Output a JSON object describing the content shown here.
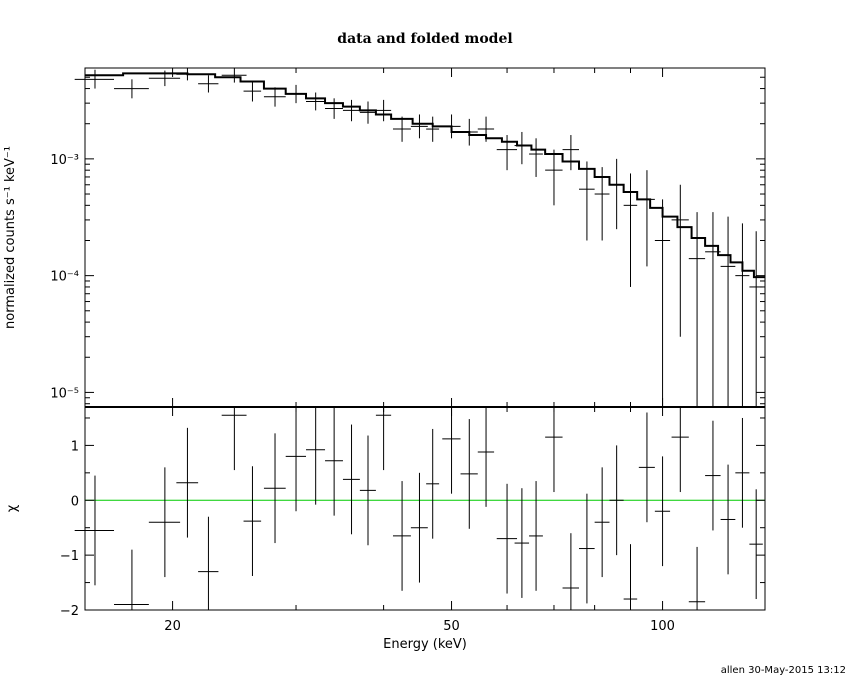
{
  "footer": "allen 30-May-2015 13:12",
  "chart_data": {
    "type": "scatter",
    "title": "data and folded model",
    "xlabel": "Energy (keV)",
    "xscale": "log",
    "xlim": [
      15,
      140
    ],
    "xticks": [
      20,
      50,
      100
    ],
    "xtick_labels": [
      "20",
      "50",
      "100"
    ],
    "top_panel": {
      "ylabel": "normalized counts s⁻¹ keV⁻¹",
      "yscale": "log",
      "ylim": [
        7.5e-06,
        0.006
      ],
      "yticks": [
        1e-05,
        0.0001,
        0.001
      ],
      "ytick_labels": [
        "10⁻⁵",
        "10⁻⁴",
        "10⁻³"
      ],
      "model_color": "#000000",
      "data": {
        "x": [
          15.5,
          17.5,
          19.5,
          21.0,
          22.5,
          24.5,
          26.0,
          28.0,
          30.0,
          32.0,
          34.0,
          36.0,
          38.0,
          40.0,
          42.5,
          45.0,
          47.0,
          50.0,
          53.0,
          56.0,
          60.0,
          63.0,
          66.0,
          70.0,
          74.0,
          78.0,
          82.0,
          86.0,
          90.0,
          95.0,
          100.0,
          106.0,
          112.0,
          118.0,
          124.0,
          130.0,
          136.0
        ],
        "y": [
          0.0048,
          0.004,
          0.0049,
          0.0053,
          0.0044,
          0.0052,
          0.0038,
          0.0034,
          0.0036,
          0.0031,
          0.0027,
          0.0026,
          0.0025,
          0.0026,
          0.0018,
          0.0019,
          0.0018,
          0.0019,
          0.0017,
          0.0018,
          0.0012,
          0.0013,
          0.0011,
          0.0008,
          0.0012,
          0.00055,
          0.0005,
          0.0006,
          0.0004,
          0.00045,
          0.0002,
          0.0003,
          0.00014,
          0.00016,
          0.00012,
          0.0001,
          8e-05
        ],
        "xerr": [
          1.0,
          1.0,
          1.0,
          0.75,
          0.75,
          1.0,
          0.75,
          1.0,
          1.0,
          1.0,
          1.0,
          1.0,
          1.0,
          1.0,
          1.25,
          1.25,
          1.0,
          1.5,
          1.5,
          1.5,
          2.0,
          1.5,
          1.5,
          2.0,
          2.0,
          2.0,
          2.0,
          2.0,
          2.0,
          2.5,
          2.5,
          3.0,
          3.0,
          3.0,
          3.0,
          3.0,
          3.0
        ],
        "ylo": [
          0.004,
          0.0033,
          0.0042,
          0.0047,
          0.0037,
          0.0045,
          0.0031,
          0.0028,
          0.003,
          0.0026,
          0.0022,
          0.0021,
          0.002,
          0.0021,
          0.0014,
          0.0015,
          0.0014,
          0.0015,
          0.0013,
          0.0014,
          0.0008,
          0.0009,
          0.0007,
          0.0004,
          0.0008,
          0.0002,
          0.0002,
          0.00025,
          8e-05,
          0.00012,
          7e-06,
          3e-05,
          7e-06,
          7e-06,
          7e-06,
          7e-06,
          7e-06
        ],
        "yhi": [
          0.0058,
          0.0048,
          0.0057,
          0.006,
          0.0052,
          0.006,
          0.0046,
          0.0041,
          0.0043,
          0.0037,
          0.0033,
          0.0032,
          0.0031,
          0.0032,
          0.0023,
          0.0024,
          0.0023,
          0.0024,
          0.0022,
          0.0023,
          0.0016,
          0.0017,
          0.0015,
          0.0012,
          0.0016,
          0.00095,
          0.00085,
          0.001,
          0.00075,
          0.0008,
          0.00045,
          0.0006,
          0.00035,
          0.00035,
          0.00032,
          0.00028,
          0.00024
        ]
      },
      "model": {
        "edges": [
          15,
          17,
          19,
          21,
          23,
          25,
          27,
          29,
          31,
          33,
          35,
          37,
          39,
          41,
          44,
          47,
          50,
          53,
          56,
          59,
          62,
          65,
          68,
          72,
          76,
          80,
          84,
          88,
          92,
          96,
          100,
          105,
          110,
          115,
          120,
          125,
          130,
          135,
          140
        ],
        "values": [
          0.0052,
          0.0054,
          0.0054,
          0.0053,
          0.005,
          0.0046,
          0.004,
          0.0036,
          0.0033,
          0.003,
          0.0028,
          0.0026,
          0.0024,
          0.0022,
          0.002,
          0.0019,
          0.0017,
          0.0016,
          0.0015,
          0.0014,
          0.0013,
          0.0012,
          0.0011,
          0.00095,
          0.00082,
          0.0007,
          0.0006,
          0.00052,
          0.00045,
          0.00038,
          0.00032,
          0.00026,
          0.00021,
          0.00018,
          0.00015,
          0.00013,
          0.00011,
          9.7e-05
        ]
      }
    },
    "bottom_panel": {
      "ylabel": "χ",
      "yscale": "linear",
      "ylim": [
        -2,
        1.7
      ],
      "yticks": [
        -2,
        -1,
        0,
        1
      ],
      "ytick_labels": [
        "−2",
        "−1",
        "0",
        "1"
      ],
      "zero_line_color": "#00cc00",
      "residuals": {
        "x": [
          15.5,
          17.5,
          19.5,
          21.0,
          22.5,
          24.5,
          26.0,
          28.0,
          30.0,
          32.0,
          34.0,
          36.0,
          38.0,
          40.0,
          42.5,
          45.0,
          47.0,
          50.0,
          53.0,
          56.0,
          60.0,
          63.0,
          66.0,
          70.0,
          74.0,
          78.0,
          82.0,
          86.0,
          90.0,
          95.0,
          100.0,
          106.0,
          112.0,
          118.0,
          124.0,
          130.0,
          136.0
        ],
        "y": [
          -0.55,
          -1.9,
          -0.4,
          0.32,
          -1.3,
          1.55,
          -0.38,
          0.22,
          0.8,
          0.92,
          0.72,
          0.38,
          0.18,
          1.55,
          -0.65,
          -0.5,
          0.3,
          1.12,
          0.48,
          0.88,
          -0.7,
          -0.78,
          -0.65,
          1.15,
          -1.6,
          -0.88,
          -0.4,
          0.0,
          -1.8,
          0.6,
          -0.2,
          1.15,
          -1.85,
          0.45,
          -0.35,
          0.5,
          -0.8
        ],
        "err": [
          1.0,
          1.0,
          1.0,
          1.0,
          1.0,
          1.0,
          1.0,
          1.0,
          1.0,
          1.0,
          1.0,
          1.0,
          1.0,
          1.0,
          1.0,
          1.0,
          1.0,
          1.0,
          1.0,
          1.0,
          1.0,
          1.0,
          1.0,
          1.0,
          1.0,
          1.0,
          1.0,
          1.0,
          1.0,
          1.0,
          1.0,
          1.0,
          1.0,
          1.0,
          1.0,
          1.0,
          1.0
        ]
      }
    }
  }
}
